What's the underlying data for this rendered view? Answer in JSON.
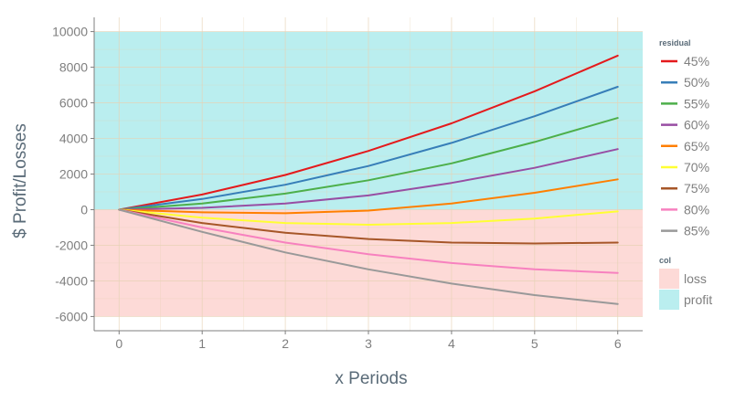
{
  "chart_data": {
    "type": "line",
    "title": "",
    "xlabel": "x Periods",
    "ylabel": "$ Profit/Losses",
    "x": [
      0,
      1,
      2,
      3,
      4,
      5,
      6
    ],
    "xlim": [
      -0.3,
      6.3
    ],
    "ylim": [
      -6800,
      10800
    ],
    "x_ticks": [
      0,
      1,
      2,
      3,
      4,
      5,
      6
    ],
    "y_ticks": [
      -6000,
      -4000,
      -2000,
      0,
      2000,
      4000,
      6000,
      8000,
      10000
    ],
    "grid": true,
    "legend_position": "right",
    "regions": [
      {
        "name": "loss",
        "ymin": -6000,
        "ymax": 0,
        "color": "#f8766d"
      },
      {
        "name": "profit",
        "ymin": 0,
        "ymax": 10000,
        "color": "#00bfc4"
      }
    ],
    "legend_residual_title": "residual",
    "legend_col_title": "col",
    "series": [
      {
        "name": "45%",
        "color": "#e41a1c",
        "values": [
          0,
          850,
          1950,
          3300,
          4850,
          6650,
          8650
        ]
      },
      {
        "name": "50%",
        "color": "#377eb8",
        "values": [
          0,
          600,
          1400,
          2450,
          3750,
          5250,
          6900
        ]
      },
      {
        "name": "55%",
        "color": "#4daf4a",
        "values": [
          0,
          350,
          900,
          1650,
          2600,
          3800,
          5150
        ]
      },
      {
        "name": "60%",
        "color": "#984ea3",
        "values": [
          0,
          100,
          350,
          800,
          1500,
          2350,
          3400
        ]
      },
      {
        "name": "65%",
        "color": "#ff7f00",
        "values": [
          0,
          -150,
          -200,
          -50,
          350,
          950,
          1700
        ]
      },
      {
        "name": "70%",
        "color": "#ffff33",
        "values": [
          0,
          -450,
          -750,
          -850,
          -750,
          -500,
          -100
        ]
      },
      {
        "name": "75%",
        "color": "#a65628",
        "values": [
          0,
          -750,
          -1300,
          -1650,
          -1850,
          -1900,
          -1850
        ]
      },
      {
        "name": "80%",
        "color": "#f781bf",
        "values": [
          0,
          -1000,
          -1850,
          -2500,
          -3000,
          -3350,
          -3550
        ]
      },
      {
        "name": "85%",
        "color": "#999999",
        "values": [
          0,
          -1250,
          -2400,
          -3350,
          -4150,
          -4800,
          -5300
        ]
      }
    ]
  }
}
